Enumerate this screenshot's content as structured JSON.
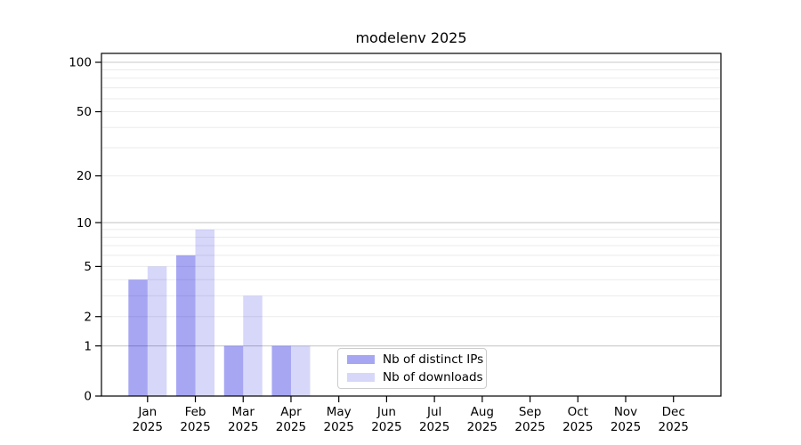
{
  "title": "modelenv 2025",
  "colors": {
    "bar_distinct_ips": "rgba(0,0,221,0.35)",
    "bar_downloads": "rgba(0,0,221,0.155)",
    "grid_minor": "#ebebeb",
    "grid_major": "#c9c9c9",
    "axis": "#000000",
    "text": "#000000",
    "legend_border": "#cccccc",
    "background": "#ffffff"
  },
  "chart_data": {
    "type": "bar",
    "title": "modelenv 2025",
    "categories": [
      "Jan",
      "Feb",
      "Mar",
      "Apr",
      "May",
      "Jun",
      "Jul",
      "Aug",
      "Sep",
      "Oct",
      "Nov",
      "Dec"
    ],
    "year_label": "2025",
    "series": [
      {
        "name": "Nb of distinct IPs",
        "values": [
          4,
          6,
          1,
          1,
          0,
          0,
          0,
          0,
          0,
          0,
          0,
          0
        ],
        "color": "rgba(0,0,221,0.35)"
      },
      {
        "name": "Nb of downloads",
        "values": [
          5,
          9,
          3,
          1,
          0,
          0,
          0,
          0,
          0,
          0,
          0,
          0
        ],
        "color": "rgba(0,0,221,0.155)"
      }
    ],
    "xlabel": "",
    "ylabel": "",
    "yscale": "log1p",
    "y_tick_labels": [
      0,
      1,
      2,
      5,
      10,
      20,
      50,
      100
    ],
    "y_major_gridlines": [
      1,
      10,
      100
    ],
    "y_minor_gridlines": [
      2,
      3,
      4,
      5,
      6,
      7,
      8,
      9,
      20,
      30,
      40,
      50,
      60,
      70,
      80,
      90
    ],
    "ylim": [
      0,
      113
    ],
    "grid": "horizontal",
    "legend_position": "lower-center-right"
  }
}
